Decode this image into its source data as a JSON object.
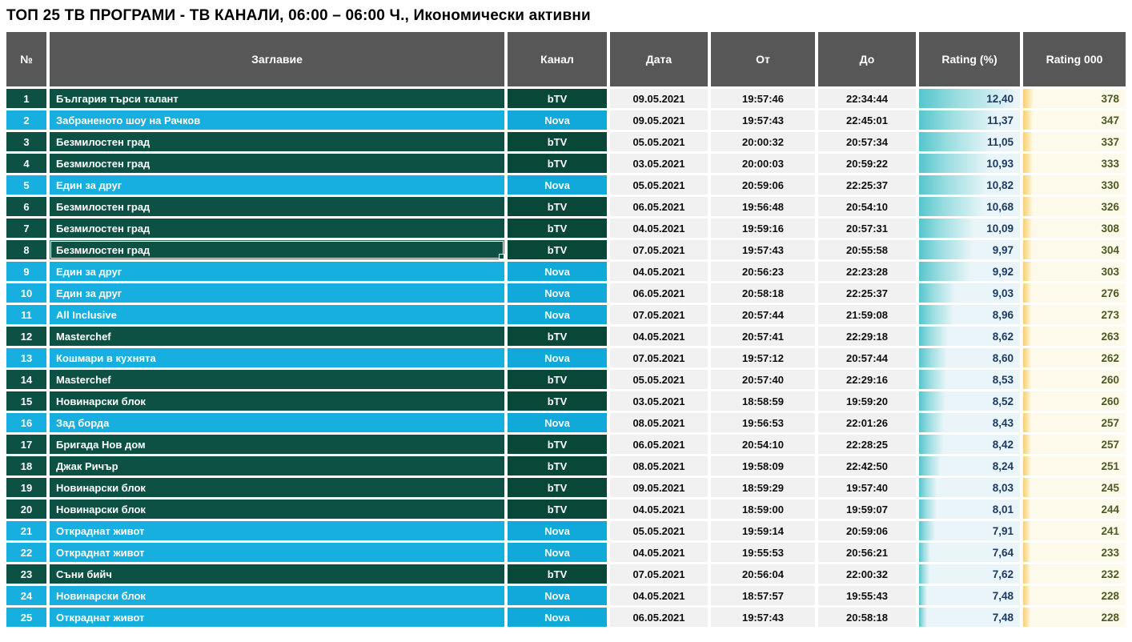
{
  "page_title": "ТОП 25 ТВ ПРОГРАМИ - ТВ КАНАЛИ, 06:00 – 06:00 Ч., Икономически активни",
  "table": {
    "columns": [
      "№",
      "Заглавие",
      "Канал",
      "Дата",
      "От",
      "До",
      "Rating (%)",
      "Rating 000"
    ],
    "selected_rank": 8,
    "channel_colors": {
      "bTV": "#0C5143",
      "Nova": "#16AFE0"
    },
    "bar_colors": {
      "rating_bar": "#54C6CC",
      "rating000_bar": "#F7CF74"
    },
    "rows": [
      {
        "rank": "1",
        "title": "България търси талант",
        "channel": "bTV",
        "date": "09.05.2021",
        "from": "19:57:46",
        "to": "22:34:44",
        "rating": "12,40",
        "rating000": "378"
      },
      {
        "rank": "2",
        "title": "Забраненото шоу на Рачков",
        "channel": "Nova",
        "date": "09.05.2021",
        "from": "19:57:43",
        "to": "22:45:01",
        "rating": "11,37",
        "rating000": "347"
      },
      {
        "rank": "3",
        "title": "Безмилостен град",
        "channel": "bTV",
        "date": "05.05.2021",
        "from": "20:00:32",
        "to": "20:57:34",
        "rating": "11,05",
        "rating000": "337"
      },
      {
        "rank": "4",
        "title": "Безмилостен град",
        "channel": "bTV",
        "date": "03.05.2021",
        "from": "20:00:03",
        "to": "20:59:22",
        "rating": "10,93",
        "rating000": "333"
      },
      {
        "rank": "5",
        "title": "Един за друг",
        "channel": "Nova",
        "date": "05.05.2021",
        "from": "20:59:06",
        "to": "22:25:37",
        "rating": "10,82",
        "rating000": "330"
      },
      {
        "rank": "6",
        "title": "Безмилостен град",
        "channel": "bTV",
        "date": "06.05.2021",
        "from": "19:56:48",
        "to": "20:54:10",
        "rating": "10,68",
        "rating000": "326"
      },
      {
        "rank": "7",
        "title": "Безмилостен град",
        "channel": "bTV",
        "date": "04.05.2021",
        "from": "19:59:16",
        "to": "20:57:31",
        "rating": "10,09",
        "rating000": "308"
      },
      {
        "rank": "8",
        "title": "Безмилостен град",
        "channel": "bTV",
        "date": "07.05.2021",
        "from": "19:57:43",
        "to": "20:55:58",
        "rating": "9,97",
        "rating000": "304"
      },
      {
        "rank": "9",
        "title": "Един за друг",
        "channel": "Nova",
        "date": "04.05.2021",
        "from": "20:56:23",
        "to": "22:23:28",
        "rating": "9,92",
        "rating000": "303"
      },
      {
        "rank": "10",
        "title": "Един за друг",
        "channel": "Nova",
        "date": "06.05.2021",
        "from": "20:58:18",
        "to": "22:25:37",
        "rating": "9,03",
        "rating000": "276"
      },
      {
        "rank": "11",
        "title": "All Inclusive",
        "channel": "Nova",
        "date": "07.05.2021",
        "from": "20:57:44",
        "to": "21:59:08",
        "rating": "8,96",
        "rating000": "273"
      },
      {
        "rank": "12",
        "title": "Masterchef",
        "channel": "bTV",
        "date": "04.05.2021",
        "from": "20:57:41",
        "to": "22:29:18",
        "rating": "8,62",
        "rating000": "263"
      },
      {
        "rank": "13",
        "title": "Кошмари в кухнята",
        "channel": "Nova",
        "date": "07.05.2021",
        "from": "19:57:12",
        "to": "20:57:44",
        "rating": "8,60",
        "rating000": "262"
      },
      {
        "rank": "14",
        "title": "Masterchef",
        "channel": "bTV",
        "date": "05.05.2021",
        "from": "20:57:40",
        "to": "22:29:16",
        "rating": "8,53",
        "rating000": "260"
      },
      {
        "rank": "15",
        "title": "Новинарски блок",
        "channel": "bTV",
        "date": "03.05.2021",
        "from": "18:58:59",
        "to": "19:59:20",
        "rating": "8,52",
        "rating000": "260"
      },
      {
        "rank": "16",
        "title": "Зад борда",
        "channel": "Nova",
        "date": "08.05.2021",
        "from": "19:56:53",
        "to": "22:01:26",
        "rating": "8,43",
        "rating000": "257"
      },
      {
        "rank": "17",
        "title": "Бригада Нов дом",
        "channel": "bTV",
        "date": "06.05.2021",
        "from": "20:54:10",
        "to": "22:28:25",
        "rating": "8,42",
        "rating000": "257"
      },
      {
        "rank": "18",
        "title": "Джак Ричър",
        "channel": "bTV",
        "date": "08.05.2021",
        "from": "19:58:09",
        "to": "22:42:50",
        "rating": "8,24",
        "rating000": "251"
      },
      {
        "rank": "19",
        "title": "Новинарски блок",
        "channel": "bTV",
        "date": "09.05.2021",
        "from": "18:59:29",
        "to": "19:57:40",
        "rating": "8,03",
        "rating000": "245"
      },
      {
        "rank": "20",
        "title": "Новинарски блок",
        "channel": "bTV",
        "date": "04.05.2021",
        "from": "18:59:00",
        "to": "19:59:07",
        "rating": "8,01",
        "rating000": "244"
      },
      {
        "rank": "21",
        "title": "Откраднат живот",
        "channel": "Nova",
        "date": "05.05.2021",
        "from": "19:59:14",
        "to": "20:59:06",
        "rating": "7,91",
        "rating000": "241"
      },
      {
        "rank": "22",
        "title": "Откраднат живот",
        "channel": "Nova",
        "date": "04.05.2021",
        "from": "19:55:53",
        "to": "20:56:21",
        "rating": "7,64",
        "rating000": "233"
      },
      {
        "rank": "23",
        "title": "Съни бийч",
        "channel": "bTV",
        "date": "07.05.2021",
        "from": "20:56:04",
        "to": "22:00:32",
        "rating": "7,62",
        "rating000": "232"
      },
      {
        "rank": "24",
        "title": "Новинарски блок",
        "channel": "Nova",
        "date": "04.05.2021",
        "from": "18:57:57",
        "to": "19:55:43",
        "rating": "7,48",
        "rating000": "228"
      },
      {
        "rank": "25",
        "title": "Откраднат живот",
        "channel": "Nova",
        "date": "06.05.2021",
        "from": "19:57:43",
        "to": "20:58:18",
        "rating": "7,48",
        "rating000": "228"
      }
    ]
  }
}
